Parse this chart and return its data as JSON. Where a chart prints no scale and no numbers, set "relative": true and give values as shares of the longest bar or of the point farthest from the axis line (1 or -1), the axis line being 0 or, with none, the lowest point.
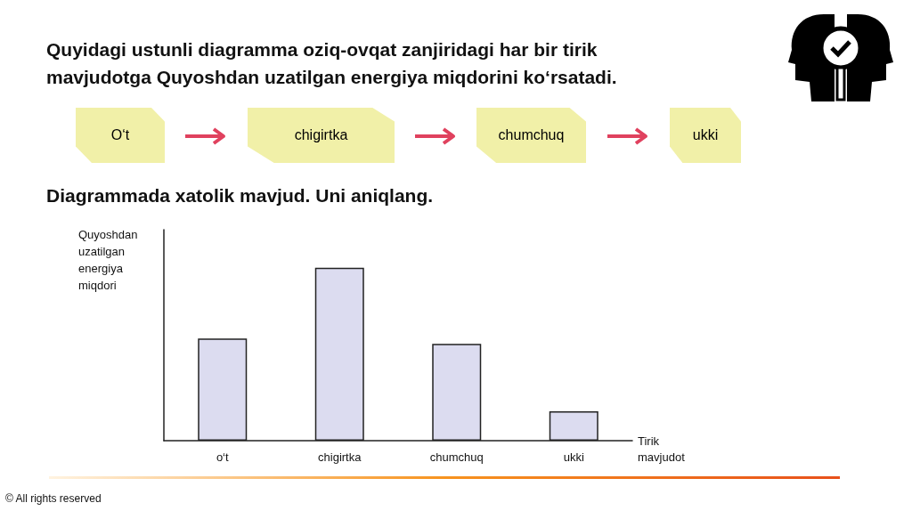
{
  "chart_data": {
    "type": "bar",
    "title": "Quyidagi ustunli diagramma oziq-ovqat zanjiridagi har bir tirik mavjudotga Quyoshdan uzatilgan energiya miqdorini ko‘rsatadi.",
    "subtitle": "Diagrammada xatolik mavjud. Uni aniqlang.",
    "ylabel": "Quyoshdan uzatilgan energiya miqdori",
    "xlabel": "Tirik mavjudot",
    "categories": [
      "o‘t",
      "chigirtka",
      "chumchuq",
      "ukki"
    ],
    "values": [
      0.59,
      1,
      0.56,
      0.17
    ],
    "color": "#dcdcf0",
    "relative": true,
    "grid": false,
    "annotations": [
      "O‘t",
      "chigirtka",
      "chumchuq",
      "ukki",
      "© All rights reserved"
    ]
  }
}
